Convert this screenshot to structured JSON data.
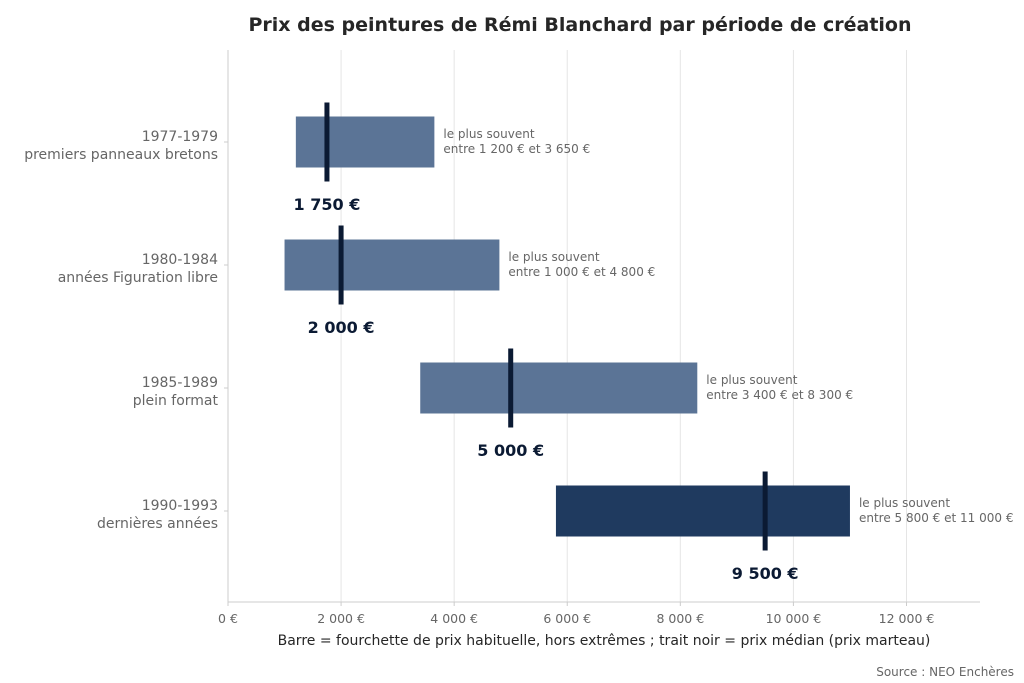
{
  "chart_data": {
    "type": "bar",
    "title": "Prix des peintures de Rémi Blanchard par période de création",
    "xlabel": "Barre = fourchette de prix habituelle, hors extrêmes ; trait noir = prix médian (prix marteau)",
    "source": "Source : NEO Enchères",
    "xlim": [
      0,
      13300
    ],
    "x_ticks": [
      0,
      2000,
      4000,
      6000,
      8000,
      10000,
      12000
    ],
    "x_tick_labels": [
      "0 €",
      "2 000 €",
      "4 000 €",
      "6 000 €",
      "8 000 €",
      "10 000 €",
      "12 000 €"
    ],
    "grid": "vertical",
    "range_note_line1": "le plus souvent",
    "periods": [
      {
        "period": "1977-1979",
        "label": "premiers panneaux bretons",
        "low": 1200,
        "high": 3650,
        "median": 1750,
        "range_note": "entre 1 200 € et 3 650 €",
        "median_label": "1 750 €",
        "color": "#5b7496"
      },
      {
        "period": "1980-1984",
        "label": "années Figuration libre",
        "low": 1000,
        "high": 4800,
        "median": 2000,
        "range_note": "entre 1 000 € et 4 800 €",
        "median_label": "2 000 €",
        "color": "#5b7496"
      },
      {
        "period": "1985-1989",
        "label": "plein format",
        "low": 3400,
        "high": 8300,
        "median": 5000,
        "range_note": "entre 3 400 € et 8 300 €",
        "median_label": "5 000 €",
        "color": "#5b7496"
      },
      {
        "period": "1990-1993",
        "label": "dernières années",
        "low": 5800,
        "high": 11000,
        "median": 9500,
        "range_note": "entre 5 800 € et 11 000 €",
        "median_label": "9 500 €",
        "color": "#1f3a5f"
      }
    ],
    "median_color": "#0b1a33",
    "grid_color": "#e5e5e5",
    "axis_color": "#cccccc"
  }
}
